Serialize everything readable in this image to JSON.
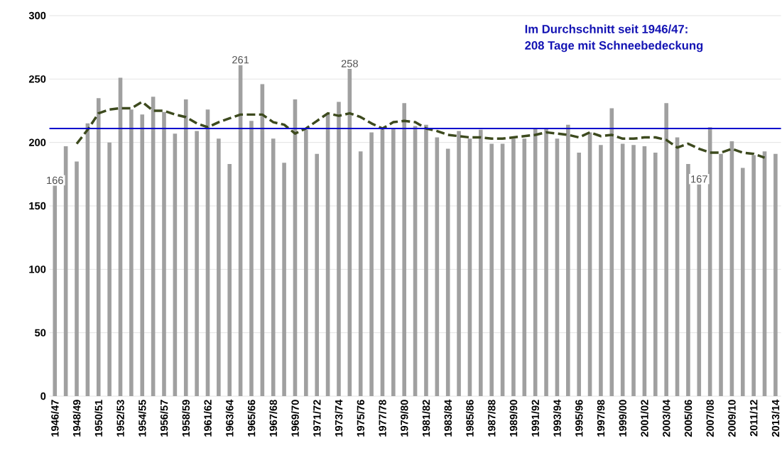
{
  "chart_data": {
    "type": "bar",
    "categories": [
      "1946/47",
      null,
      "1948/49",
      null,
      "1950/51",
      null,
      "1952/53",
      null,
      "1954/55",
      null,
      "1956/57",
      null,
      "1958/59",
      null,
      "1961/62",
      null,
      "1963/64",
      null,
      "1965/66",
      null,
      "1967/68",
      null,
      "1969/70",
      null,
      "1971/72",
      null,
      "1973/74",
      null,
      "1975/76",
      null,
      "1977/78",
      null,
      "1979/80",
      null,
      "1981/82",
      null,
      "1983/84",
      null,
      "1985/86",
      null,
      "1987/88",
      null,
      "1989/90",
      null,
      "1991/92",
      null,
      "1993/94",
      null,
      "1995/96",
      null,
      "1997/98",
      null,
      "1999/00",
      null,
      "2001/02",
      null,
      "2003/04",
      null,
      "2005/06",
      null,
      "2007/08",
      null,
      "2009/10",
      null,
      "2011/12",
      null,
      "2013/14"
    ],
    "series": [
      {
        "type": "bar",
        "color": "#a0a0a0",
        "values": [
          166,
          197,
          185,
          215,
          235,
          200,
          251,
          226,
          222,
          236,
          224,
          207,
          234,
          209,
          226,
          203,
          183,
          261,
          217,
          246,
          203,
          184,
          234,
          210,
          191,
          222,
          232,
          258,
          193,
          208,
          212,
          211,
          231,
          213,
          214,
          204,
          195,
          209,
          203,
          210,
          199,
          199,
          203,
          203,
          211,
          211,
          203,
          214,
          192,
          208,
          198,
          227,
          199,
          198,
          197,
          192,
          231,
          204,
          183,
          167,
          212,
          191,
          201,
          180,
          190,
          193,
          191
        ],
        "value_labels": [
          "166",
          null,
          null,
          null,
          null,
          null,
          null,
          null,
          null,
          null,
          null,
          null,
          null,
          null,
          null,
          null,
          null,
          "261",
          null,
          null,
          null,
          null,
          null,
          null,
          null,
          null,
          null,
          "258",
          null,
          null,
          null,
          null,
          null,
          null,
          null,
          null,
          null,
          null,
          null,
          null,
          null,
          null,
          null,
          null,
          null,
          null,
          null,
          null,
          null,
          null,
          null,
          null,
          null,
          null,
          null,
          null,
          null,
          null,
          null,
          "167",
          null,
          null,
          null,
          null,
          null,
          null,
          null
        ]
      },
      {
        "type": "line",
        "color": "#3d4a1e",
        "line_style": "dashed",
        "values": [
          null,
          null,
          199,
          210,
          223,
          226,
          227,
          227,
          232,
          225,
          225,
          222,
          220,
          215,
          212,
          216,
          219,
          222,
          222,
          222,
          216,
          214,
          207,
          211,
          217,
          223,
          221,
          223,
          220,
          215,
          211,
          216,
          217,
          216,
          211,
          209,
          206,
          205,
          204,
          204,
          203,
          203,
          204,
          205,
          206,
          208,
          207,
          206,
          204,
          208,
          205,
          206,
          203,
          203,
          204,
          204,
          202,
          196,
          199,
          195,
          192,
          192,
          195,
          192,
          191,
          188,
          null
        ]
      }
    ],
    "ylim": [
      0,
      300
    ],
    "yticks": [
      0,
      50,
      100,
      150,
      200,
      250,
      300
    ],
    "grid": "y",
    "marker": "none",
    "ref_lines": [
      {
        "axis": "y",
        "value": 211,
        "color": "#0000cc"
      }
    ],
    "annotations": [
      "Im Durchschnitt seit 1946/47:",
      "208 Tage mit Schneebedeckung"
    ]
  }
}
